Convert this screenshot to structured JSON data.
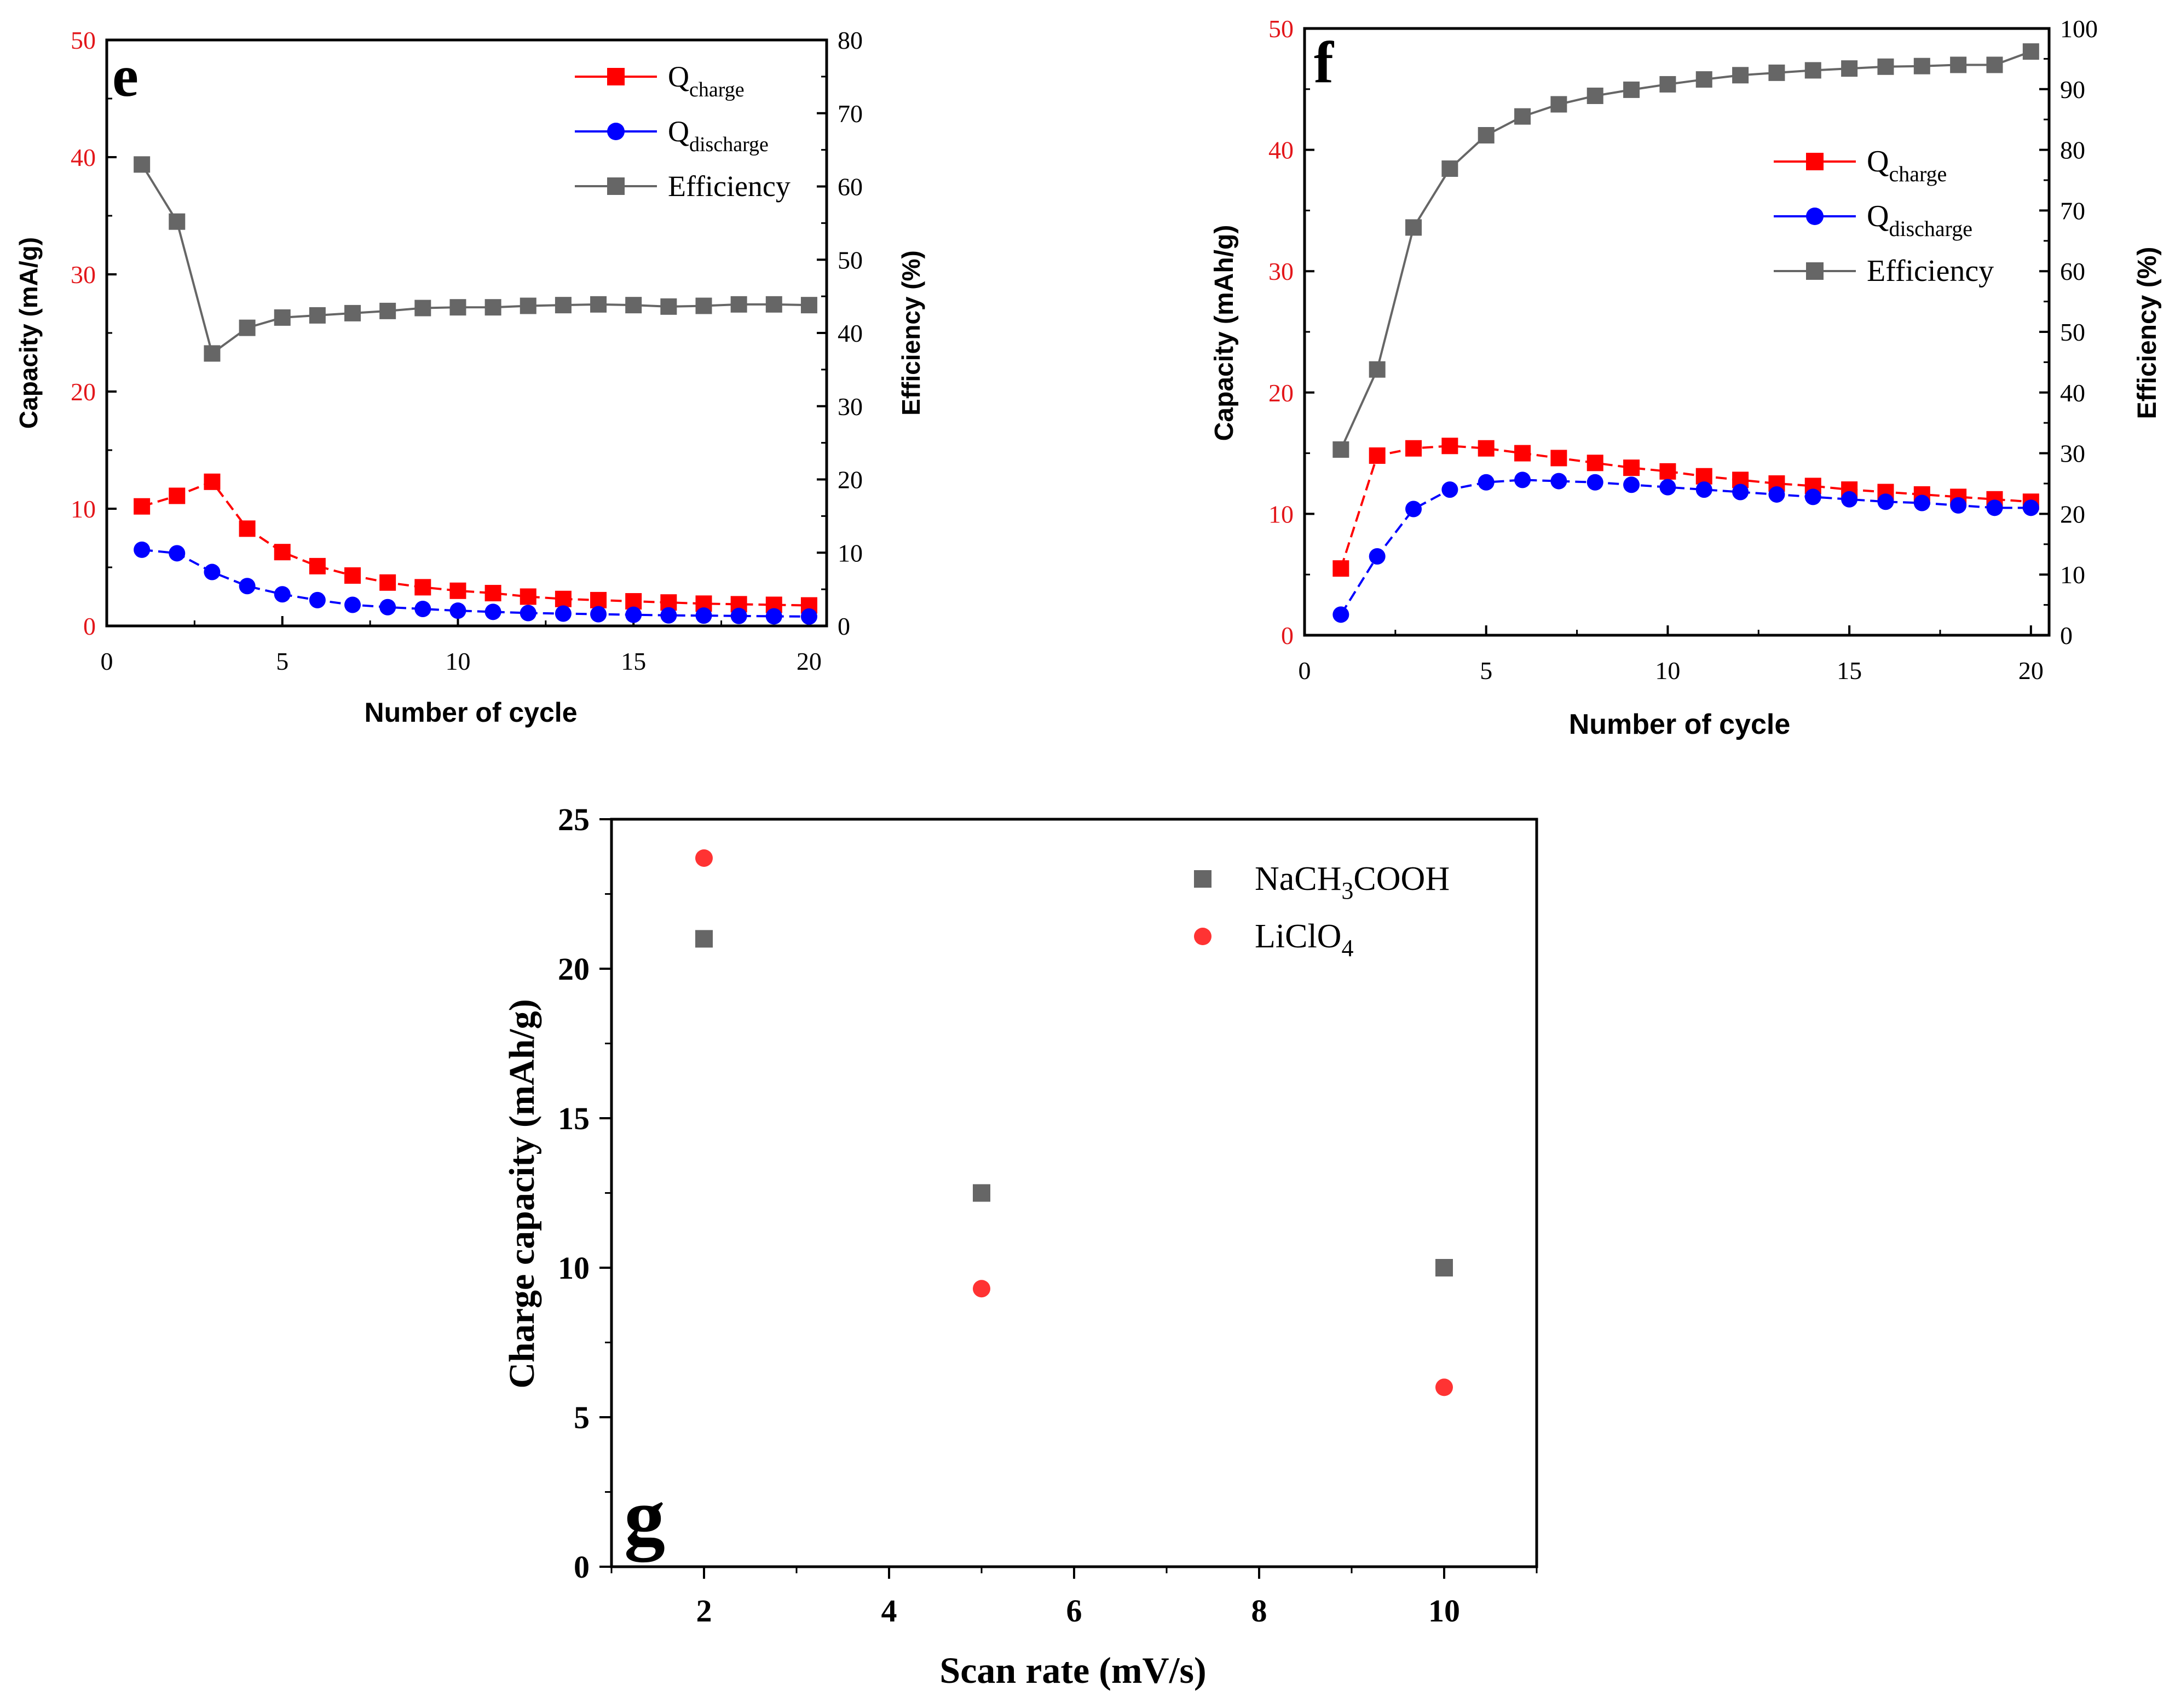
{
  "chart_data": [
    {
      "panel": "e",
      "type": "line",
      "xlabel": "Number of cycle",
      "ylabel": "Capacity (mA/g)",
      "ylabel_right": "Efficiency (%)",
      "xlim": [
        0,
        20.5
      ],
      "ylim": [
        0,
        50
      ],
      "ylim_right": [
        0,
        80
      ],
      "x_ticks": [
        "0",
        "5",
        "10",
        "15",
        "20"
      ],
      "y_ticks": [
        "0",
        "10",
        "20",
        "30",
        "40",
        "50"
      ],
      "y_ticks_right": [
        "0",
        "10",
        "20",
        "30",
        "40",
        "50",
        "60",
        "70",
        "80"
      ],
      "legend": [
        {
          "base": "Q",
          "sub": "charge",
          "color": "#ff0000",
          "marker": "square",
          "dash": true
        },
        {
          "base": "Q",
          "sub": "discharge",
          "color": "#0000ff",
          "marker": "circle",
          "dash": true
        },
        {
          "base": "Efficiency",
          "sub": "",
          "color": "#666666",
          "marker": "square",
          "dash": false
        }
      ],
      "x": [
        1,
        2,
        3,
        4,
        5,
        6,
        7,
        8,
        9,
        10,
        11,
        12,
        13,
        14,
        15,
        16,
        17,
        18,
        19,
        20
      ],
      "series": [
        {
          "name": "Qcharge",
          "axis": "left",
          "color": "#ff0000",
          "marker": "square",
          "dash": true,
          "values": [
            10.2,
            11.1,
            12.3,
            8.3,
            6.3,
            5.1,
            4.3,
            3.7,
            3.3,
            3.0,
            2.8,
            2.5,
            2.3,
            2.2,
            2.1,
            2.0,
            1.9,
            1.85,
            1.8,
            1.75
          ]
        },
        {
          "name": "Qdischarge",
          "axis": "left",
          "color": "#0000ff",
          "marker": "circle",
          "dash": true,
          "values": [
            6.5,
            6.2,
            4.6,
            3.4,
            2.7,
            2.2,
            1.8,
            1.6,
            1.45,
            1.3,
            1.2,
            1.1,
            1.05,
            1.0,
            0.95,
            0.9,
            0.88,
            0.85,
            0.82,
            0.8
          ]
        },
        {
          "name": "Efficiency",
          "axis": "right",
          "color": "#666666",
          "marker": "square",
          "dash": false,
          "values": [
            63,
            55.2,
            37.2,
            40.7,
            42.1,
            42.4,
            42.7,
            43.0,
            43.4,
            43.5,
            43.5,
            43.7,
            43.8,
            43.9,
            43.8,
            43.6,
            43.7,
            43.9,
            43.9,
            43.8
          ]
        }
      ]
    },
    {
      "panel": "f",
      "type": "line",
      "xlabel": "Number of cycle",
      "ylabel": "Capacity (mAh/g)",
      "ylabel_right": "Efficiency (%)",
      "xlim": [
        0,
        20.5
      ],
      "ylim": [
        0,
        50
      ],
      "ylim_right": [
        0,
        100
      ],
      "x_ticks": [
        "0",
        "5",
        "10",
        "15",
        "20"
      ],
      "y_ticks": [
        "0",
        "10",
        "20",
        "30",
        "40",
        "50"
      ],
      "y_ticks_right": [
        "0",
        "10",
        "20",
        "30",
        "40",
        "50",
        "60",
        "70",
        "80",
        "90",
        "100"
      ],
      "legend": [
        {
          "base": "Q",
          "sub": "charge",
          "color": "#ff0000",
          "marker": "square",
          "dash": true
        },
        {
          "base": "Q",
          "sub": "discharge",
          "color": "#0000ff",
          "marker": "circle",
          "dash": true
        },
        {
          "base": "Efficiency",
          "sub": "",
          "color": "#666666",
          "marker": "square",
          "dash": false
        }
      ],
      "x": [
        1,
        2,
        3,
        4,
        5,
        6,
        7,
        8,
        9,
        10,
        11,
        12,
        13,
        14,
        15,
        16,
        17,
        18,
        19,
        20
      ],
      "series": [
        {
          "name": "Qcharge",
          "axis": "left",
          "color": "#ff0000",
          "marker": "square",
          "dash": true,
          "values": [
            5.5,
            14.8,
            15.4,
            15.6,
            15.4,
            15.0,
            14.6,
            14.2,
            13.8,
            13.5,
            13.1,
            12.8,
            12.5,
            12.3,
            12.0,
            11.8,
            11.6,
            11.4,
            11.2,
            11.0
          ]
        },
        {
          "name": "Qdischarge",
          "axis": "left",
          "color": "#0000ff",
          "marker": "circle",
          "dash": true,
          "values": [
            1.7,
            6.5,
            10.4,
            12.0,
            12.6,
            12.8,
            12.7,
            12.6,
            12.4,
            12.2,
            12.0,
            11.8,
            11.6,
            11.4,
            11.2,
            11.0,
            10.9,
            10.7,
            10.5,
            10.5
          ]
        },
        {
          "name": "Efficiency",
          "axis": "right",
          "color": "#666666",
          "marker": "square",
          "dash": false,
          "values": [
            30.6,
            43.8,
            67.2,
            76.9,
            82.4,
            85.5,
            87.5,
            88.9,
            89.9,
            90.8,
            91.6,
            92.3,
            92.7,
            93.1,
            93.4,
            93.7,
            93.8,
            94.0,
            94.0,
            96.2
          ]
        }
      ]
    },
    {
      "panel": "g",
      "type": "scatter",
      "xlabel": "Scan rate (mV/s)",
      "ylabel": "Charge capacity (mAh/g)",
      "xlim": [
        1,
        11
      ],
      "ylim": [
        0,
        25
      ],
      "x_ticks": [
        "2",
        "4",
        "6",
        "8",
        "10"
      ],
      "y_ticks": [
        "0",
        "5",
        "10",
        "15",
        "20",
        "25"
      ],
      "legend": [
        {
          "parts": [
            {
              "t": "NaCH"
            },
            {
              "t": "3",
              "sub": true
            },
            {
              "t": "COOH"
            }
          ],
          "color": "#666666",
          "marker": "square"
        },
        {
          "parts": [
            {
              "t": "LiClO"
            },
            {
              "t": "4",
              "sub": true
            }
          ],
          "color": "#ff3333",
          "marker": "circle"
        }
      ],
      "series": [
        {
          "name": "NaCH3COOH",
          "color": "#666666",
          "marker": "square",
          "x": [
            2,
            5,
            10
          ],
          "values": [
            21.0,
            12.5,
            10.0
          ]
        },
        {
          "name": "LiClO4",
          "color": "#ff3333",
          "marker": "circle",
          "x": [
            2,
            5,
            10
          ],
          "values": [
            23.7,
            9.3,
            6.0
          ]
        }
      ]
    }
  ]
}
